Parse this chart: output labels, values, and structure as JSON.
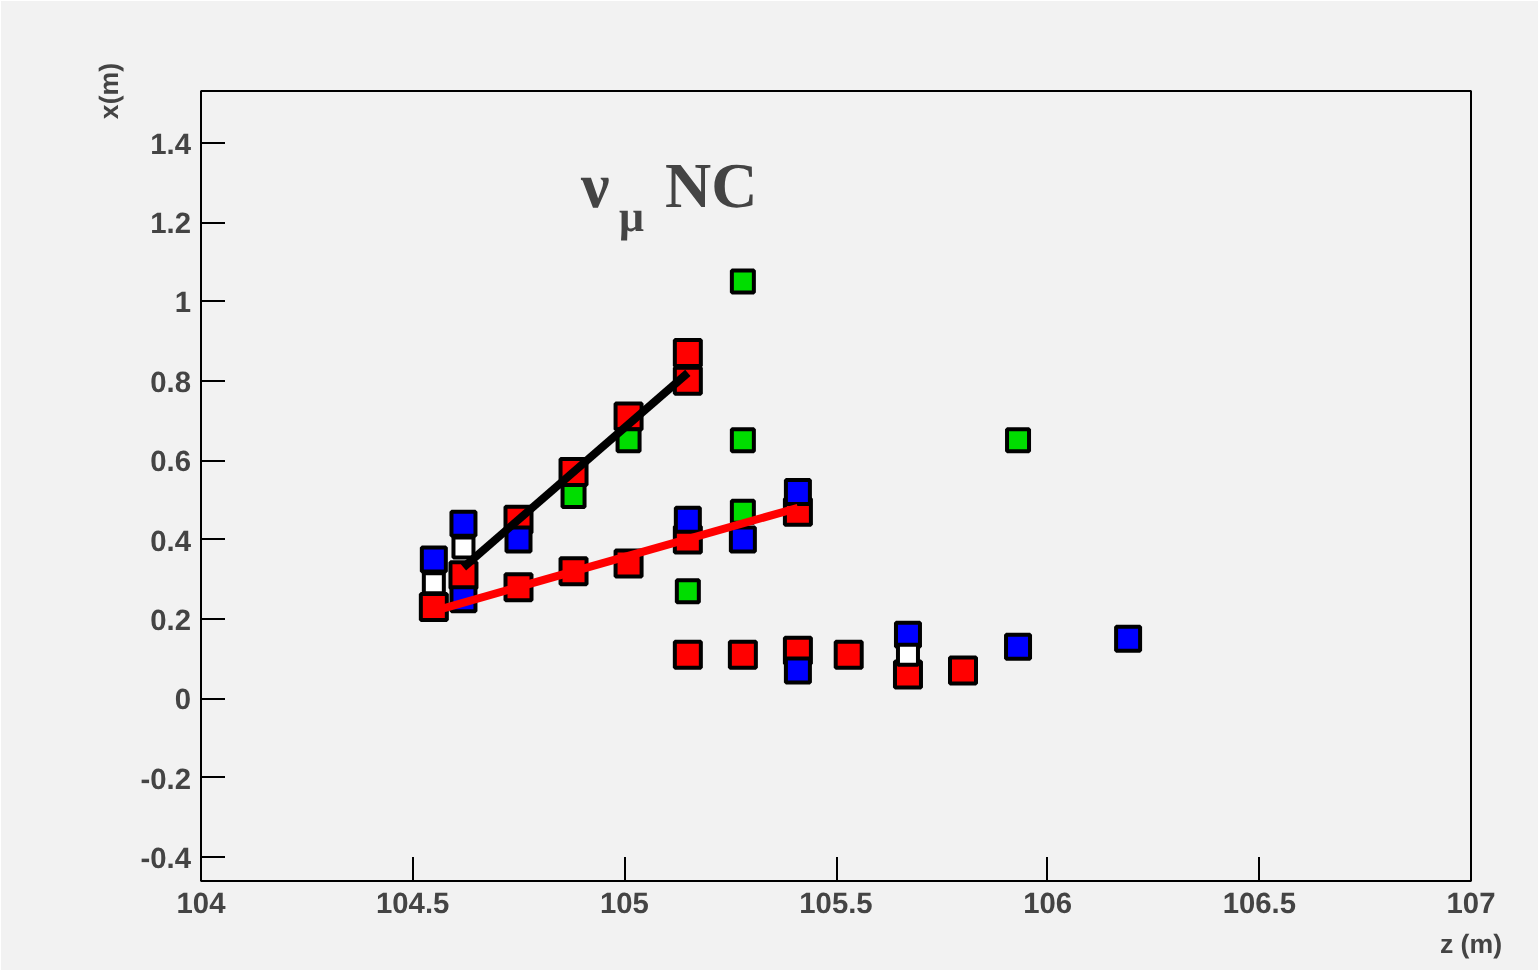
{
  "chart_data": {
    "type": "scatter",
    "xlabel": "z (m)",
    "ylabel": "x(m)",
    "xlim": [
      104,
      107
    ],
    "ylim": [
      -0.46,
      1.53
    ],
    "xticks": [
      104,
      104.5,
      105,
      105.5,
      106,
      106.5,
      107
    ],
    "yticks": [
      -0.4,
      -0.2,
      0,
      0.2,
      0.4,
      0.6,
      0.8,
      1,
      1.2,
      1.4
    ],
    "grid": false,
    "marker": "square",
    "annotations": [
      "ν$_{μ}$ NC"
    ],
    "series": [
      {
        "color": "#ff0000",
        "x": [
          104.55,
          104.62,
          104.75,
          104.88,
          105.01,
          105.15,
          105.15,
          105.15,
          105.15,
          105.28,
          105.41,
          105.41,
          105.53,
          105.67,
          105.8,
          104.88,
          105.01,
          104.75
        ],
        "values": [
          0.23,
          0.31,
          0.28,
          0.32,
          0.34,
          0.87,
          0.8,
          0.4,
          0.11,
          0.11,
          0.47,
          0.12,
          0.11,
          0.06,
          0.07,
          0.57,
          0.71,
          0.45
        ]
      },
      {
        "color": "#0000ff",
        "x": [
          104.55,
          104.62,
          104.62,
          104.75,
          105.15,
          105.28,
          105.41,
          105.41,
          105.67,
          105.93,
          106.19
        ],
        "values": [
          0.35,
          0.44,
          0.25,
          0.4,
          0.45,
          0.4,
          0.52,
          0.07,
          0.16,
          0.13,
          0.15
        ]
      },
      {
        "color": "#00dd00",
        "x": [
          104.88,
          105.01,
          105.15,
          105.28,
          105.28,
          105.28,
          105.93
        ],
        "values": [
          0.51,
          0.65,
          0.27,
          1.05,
          0.65,
          0.47,
          0.65
        ]
      },
      {
        "color": "#ffffff",
        "x": [
          104.55,
          104.62,
          105.67
        ],
        "values": [
          0.29,
          0.38,
          0.11
        ]
      },
      {
        "type": "line",
        "color": "#000000",
        "marker": "none",
        "x": [
          104.62,
          105.15
        ],
        "values": [
          0.33,
          0.82
        ]
      },
      {
        "type": "line",
        "color": "#ff0000",
        "marker": "none",
        "x": [
          104.55,
          105.41
        ],
        "values": [
          0.22,
          0.48
        ]
      }
    ]
  }
}
